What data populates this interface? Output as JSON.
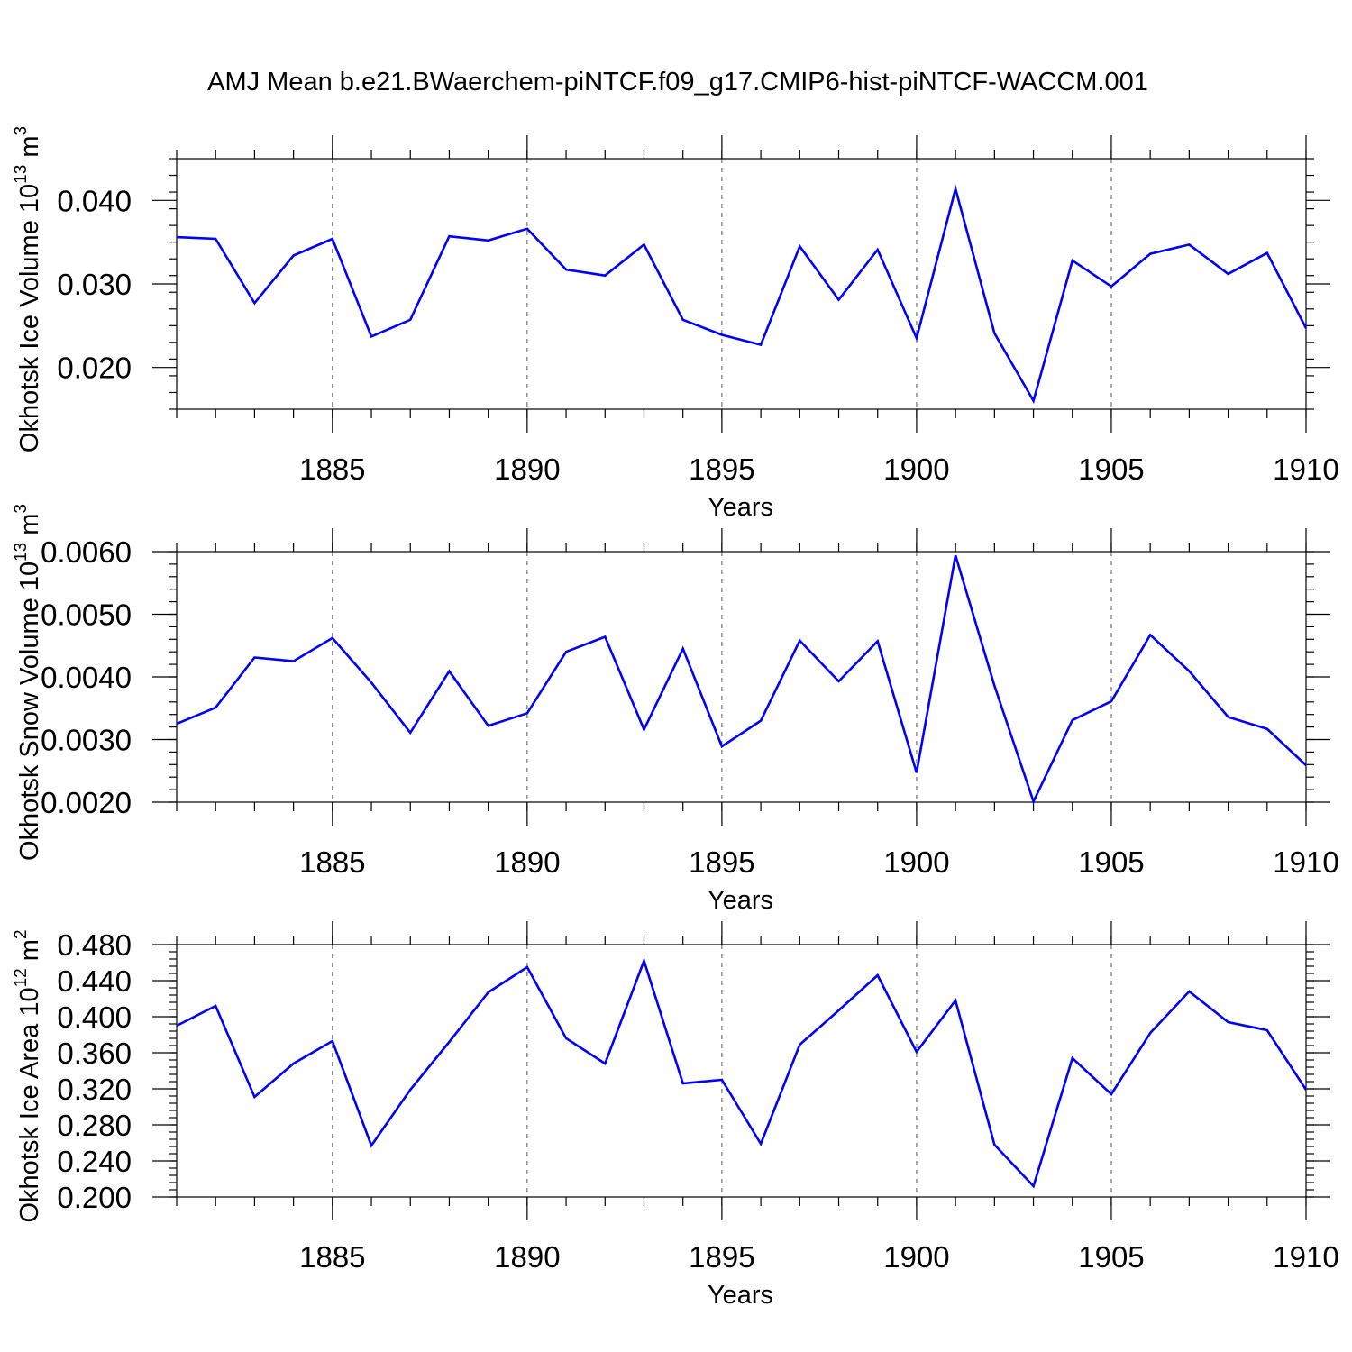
{
  "chart_data": [
    {
      "type": "line",
      "title": "AMJ Mean b.e21.BWaerchem-piNTCF.f09_g17.CMIP6-hist-piNTCF-WACCM.001",
      "xlabel": "Years",
      "ylabel": "Okhotsk Ice Volume 10",
      "ylabel_sup": "13",
      "ylabel_unit": "m",
      "ylabel_unit_sup": "3",
      "xlim": [
        1881,
        1910
      ],
      "ylim": [
        0.015,
        0.045
      ],
      "x_ticks": [
        1885,
        1890,
        1895,
        1900,
        1905,
        1910
      ],
      "x_tick_labels": [
        "1885",
        "1890",
        "1895",
        "1900",
        "1905",
        "1910"
      ],
      "y_ticks": [
        0.02,
        0.03,
        0.04
      ],
      "y_tick_labels": [
        "0.020",
        "0.030",
        "0.040"
      ],
      "grid": "vertical dashed at major x ticks",
      "series_color": "#0000ff",
      "x": [
        1881,
        1882,
        1883,
        1884,
        1885,
        1886,
        1887,
        1888,
        1889,
        1890,
        1891,
        1892,
        1893,
        1894,
        1895,
        1896,
        1897,
        1898,
        1899,
        1900,
        1901,
        1902,
        1903,
        1904,
        1905,
        1906,
        1907,
        1908,
        1909,
        1910
      ],
      "values": [
        0.0356,
        0.0354,
        0.0277,
        0.0334,
        0.0354,
        0.0237,
        0.0257,
        0.0357,
        0.0352,
        0.0366,
        0.0317,
        0.031,
        0.0347,
        0.0257,
        0.0239,
        0.0227,
        0.0345,
        0.0281,
        0.0341,
        0.0235,
        0.0414,
        0.0241,
        0.016,
        0.0328,
        0.0297,
        0.0336,
        0.0347,
        0.0312,
        0.0337,
        0.0247
      ]
    },
    {
      "type": "line",
      "xlabel": "Years",
      "ylabel": "Okhotsk Snow Volume 10",
      "ylabel_sup": "13",
      "ylabel_unit": "m",
      "ylabel_unit_sup": "3",
      "xlim": [
        1881,
        1910
      ],
      "ylim": [
        0.002,
        0.006
      ],
      "x_ticks": [
        1885,
        1890,
        1895,
        1900,
        1905,
        1910
      ],
      "x_tick_labels": [
        "1885",
        "1890",
        "1895",
        "1900",
        "1905",
        "1910"
      ],
      "y_ticks": [
        0.002,
        0.003,
        0.004,
        0.005,
        0.006
      ],
      "y_tick_labels": [
        "0.0020",
        "0.0030",
        "0.0040",
        "0.0050",
        "0.0060"
      ],
      "grid": "vertical dashed at major x ticks",
      "series_color": "#0000ff",
      "x": [
        1881,
        1882,
        1883,
        1884,
        1885,
        1886,
        1887,
        1888,
        1889,
        1890,
        1891,
        1892,
        1893,
        1894,
        1895,
        1896,
        1897,
        1898,
        1899,
        1900,
        1901,
        1902,
        1903,
        1904,
        1905,
        1906,
        1907,
        1908,
        1909,
        1910
      ],
      "values": [
        0.00325,
        0.00351,
        0.00431,
        0.00425,
        0.00462,
        0.00391,
        0.00311,
        0.00409,
        0.00322,
        0.00342,
        0.0044,
        0.00464,
        0.00316,
        0.00445,
        0.00289,
        0.0033,
        0.00458,
        0.00393,
        0.00457,
        0.00247,
        0.00594,
        0.00386,
        0.00201,
        0.00331,
        0.00361,
        0.00467,
        0.00409,
        0.00336,
        0.00317,
        0.00259
      ]
    },
    {
      "type": "line",
      "xlabel": "Years",
      "ylabel": "Okhotsk Ice Area 10",
      "ylabel_sup": "12",
      "ylabel_unit": "m",
      "ylabel_unit_sup": "2",
      "xlim": [
        1881,
        1910
      ],
      "ylim": [
        0.2,
        0.48
      ],
      "x_ticks": [
        1885,
        1890,
        1895,
        1900,
        1905,
        1910
      ],
      "x_tick_labels": [
        "1885",
        "1890",
        "1895",
        "1900",
        "1905",
        "1910"
      ],
      "y_ticks": [
        0.2,
        0.24,
        0.28,
        0.32,
        0.36,
        0.4,
        0.44,
        0.48
      ],
      "y_tick_labels": [
        "0.200",
        "0.240",
        "0.280",
        "0.320",
        "0.360",
        "0.400",
        "0.440",
        "0.480"
      ],
      "grid": "vertical dashed at major x ticks",
      "series_color": "#0000ff",
      "x": [
        1881,
        1882,
        1883,
        1884,
        1885,
        1886,
        1887,
        1888,
        1889,
        1890,
        1891,
        1892,
        1893,
        1894,
        1895,
        1896,
        1897,
        1898,
        1899,
        1900,
        1901,
        1902,
        1903,
        1904,
        1905,
        1906,
        1907,
        1908,
        1909,
        1910
      ],
      "values": [
        0.39,
        0.412,
        0.311,
        0.348,
        0.373,
        0.257,
        0.319,
        0.372,
        0.427,
        0.455,
        0.376,
        0.348,
        0.462,
        0.326,
        0.33,
        0.259,
        0.369,
        0.407,
        0.446,
        0.361,
        0.418,
        0.258,
        0.212,
        0.354,
        0.314,
        0.382,
        0.428,
        0.394,
        0.385,
        0.319
      ]
    }
  ]
}
